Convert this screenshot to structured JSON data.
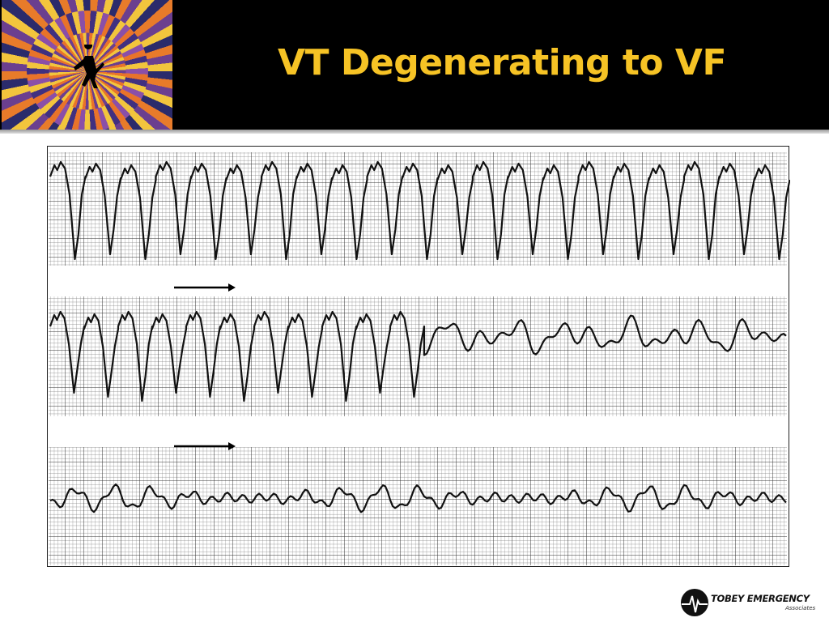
{
  "header": {
    "title": "VT Degenerating to VF"
  },
  "logo": {
    "name": "TOBEY EMERGENCY",
    "subtitle": "Associates"
  }
}
